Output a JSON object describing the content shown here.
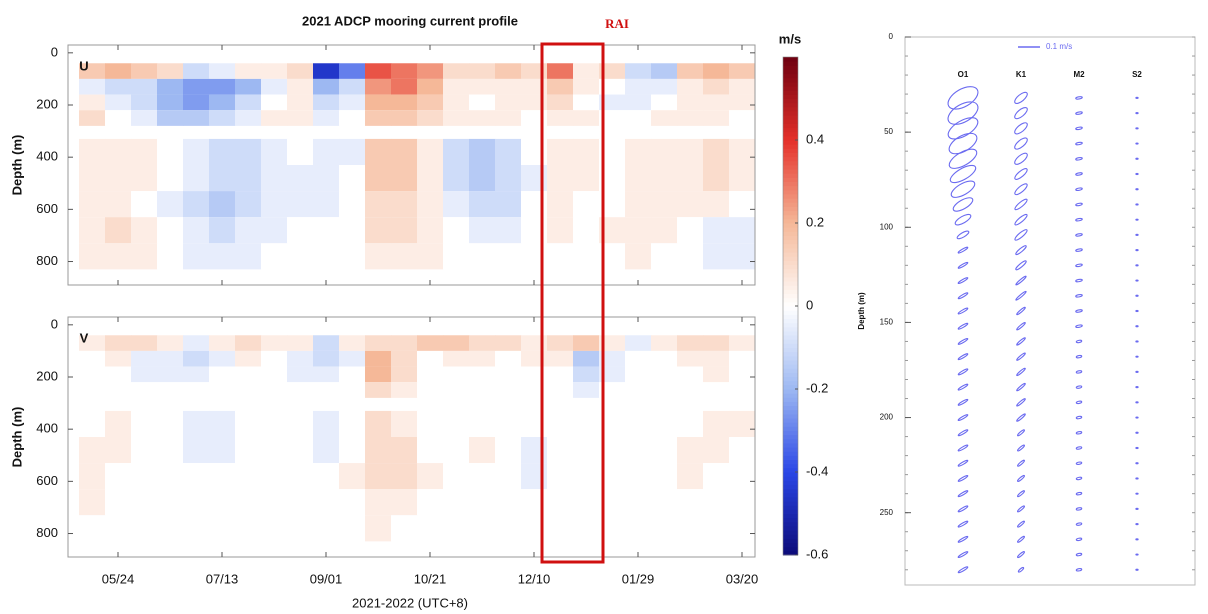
{
  "title": "2021 ADCP mooring current profile",
  "annotation": "RAI",
  "xlabel": "2021-2022 (UTC+8)",
  "colorbar": {
    "label": "m/s",
    "zlim": [
      -0.6,
      0.6
    ],
    "zticks": [
      0.4,
      0.2,
      0,
      -0.2,
      -0.4,
      -0.6
    ],
    "colormap": [
      "#0c0a78",
      "#2a46e6",
      "#9db8f2",
      "#ffffff",
      "#f5b898",
      "#e5312a",
      "#6e0010"
    ]
  },
  "chart_data": [
    {
      "type": "heatmap",
      "panel_label": "U",
      "ylabel": "Depth (m)",
      "ylim": [
        -30,
        890
      ],
      "yticks": [
        0,
        200,
        400,
        600,
        800
      ],
      "rows": [
        [
          40,
          100
        ],
        [
          100,
          160
        ],
        [
          160,
          220
        ],
        [
          220,
          280
        ],
        [
          330,
          430
        ],
        [
          430,
          530
        ],
        [
          530,
          630
        ],
        [
          630,
          730
        ],
        [
          730,
          830
        ]
      ],
      "values": [
        [
          0.15,
          0.2,
          0.15,
          0.1,
          -0.1,
          -0.05,
          0.05,
          0.05,
          0.1,
          -0.45,
          -0.3,
          0.35,
          0.3,
          0.25,
          0.1,
          0.1,
          0.15,
          0.1,
          0.3,
          0.05,
          0.1,
          -0.1,
          -0.15,
          0.15,
          0.2,
          0.15
        ],
        [
          -0.05,
          -0.1,
          -0.1,
          -0.2,
          -0.25,
          -0.25,
          -0.2,
          -0.05,
          0.05,
          -0.2,
          -0.1,
          0.25,
          0.3,
          0.2,
          0.05,
          0.05,
          0.05,
          0.05,
          0.15,
          0.05,
          0,
          -0.05,
          -0.05,
          0.05,
          0.1,
          0.05
        ],
        [
          0.05,
          -0.05,
          -0.1,
          -0.2,
          -0.25,
          -0.2,
          -0.1,
          0,
          0.05,
          -0.1,
          -0.05,
          0.2,
          0.2,
          0.15,
          0.05,
          0,
          0.05,
          0.05,
          0.1,
          0,
          -0.05,
          -0.05,
          0,
          0.05,
          0.05,
          0.05
        ],
        [
          0.1,
          0,
          -0.05,
          -0.15,
          -0.15,
          -0.1,
          -0.05,
          0.05,
          0.05,
          -0.05,
          0,
          0.15,
          0.15,
          0.1,
          0.05,
          0.05,
          0.05,
          0,
          0.05,
          0.05,
          0,
          0,
          0.05,
          0.05,
          0.05,
          0
        ],
        [
          0.05,
          0.05,
          0.05,
          0,
          -0.05,
          -0.1,
          -0.1,
          -0.05,
          0,
          -0.05,
          -0.05,
          0.15,
          0.15,
          0.05,
          -0.1,
          -0.15,
          -0.1,
          0,
          0.05,
          0.05,
          0,
          0.05,
          0.05,
          0.05,
          0.1,
          0.05
        ],
        [
          0.05,
          0.05,
          0.05,
          0,
          -0.05,
          -0.1,
          -0.1,
          -0.05,
          -0.05,
          -0.05,
          0,
          0.15,
          0.15,
          0.05,
          -0.1,
          -0.15,
          -0.1,
          -0.05,
          0.05,
          0.05,
          0,
          0.05,
          0.05,
          0.05,
          0.1,
          0.05
        ],
        [
          0.05,
          0.05,
          0,
          -0.05,
          -0.1,
          -0.15,
          -0.1,
          -0.05,
          -0.05,
          -0.05,
          0,
          0.1,
          0.1,
          0.05,
          -0.05,
          -0.1,
          -0.1,
          0,
          0.05,
          0,
          0,
          0.05,
          0.05,
          0.05,
          0.05,
          0
        ],
        [
          0.05,
          0.1,
          0.05,
          0,
          -0.05,
          -0.1,
          -0.05,
          -0.05,
          0,
          0,
          0,
          0.1,
          0.1,
          0.05,
          0,
          -0.05,
          -0.05,
          0,
          0.05,
          0,
          0.05,
          0.05,
          0.05,
          0,
          -0.05,
          -0.05
        ],
        [
          0.05,
          0.05,
          0.05,
          0,
          -0.05,
          -0.05,
          -0.05,
          0,
          0,
          0,
          0,
          0.05,
          0.05,
          0.05,
          0,
          0,
          0,
          0,
          0,
          0,
          0,
          0.05,
          0,
          0,
          -0.05,
          -0.05
        ]
      ]
    },
    {
      "type": "heatmap",
      "panel_label": "V",
      "ylabel": "Depth (m)",
      "ylim": [
        -30,
        890
      ],
      "yticks": [
        0,
        200,
        400,
        600,
        800
      ],
      "categories": [
        null,
        "05/24",
        null,
        null,
        null,
        "07/13",
        null,
        null,
        null,
        "09/01",
        null,
        null,
        null,
        "10/21",
        null,
        null,
        null,
        "12/10",
        null,
        null,
        null,
        "01/29",
        null,
        null,
        null,
        "03/20"
      ],
      "rows": [
        [
          40,
          100
        ],
        [
          100,
          160
        ],
        [
          160,
          220
        ],
        [
          220,
          280
        ],
        [
          330,
          430
        ],
        [
          430,
          530
        ],
        [
          530,
          630
        ],
        [
          630,
          730
        ],
        [
          730,
          830
        ]
      ],
      "values": [
        [
          0.05,
          0.1,
          0.1,
          0.05,
          -0.05,
          0.05,
          0.1,
          0.05,
          0.05,
          -0.1,
          0.05,
          0.1,
          0.1,
          0.15,
          0.15,
          0.1,
          0.1,
          0.05,
          0.1,
          0.15,
          0.05,
          -0.05,
          0.05,
          0.1,
          0.1,
          0.05
        ],
        [
          0,
          0.05,
          -0.05,
          -0.05,
          -0.1,
          -0.05,
          0.05,
          0,
          -0.05,
          -0.1,
          -0.05,
          0.2,
          0.1,
          0,
          0.05,
          0.05,
          0,
          0.05,
          0.05,
          -0.15,
          -0.05,
          0,
          0,
          0.05,
          0.05,
          0
        ],
        [
          0,
          0,
          -0.05,
          -0.05,
          -0.05,
          0,
          0,
          0,
          -0.05,
          -0.05,
          0,
          0.2,
          0.1,
          0,
          0,
          0,
          0,
          0,
          0,
          -0.1,
          -0.05,
          0,
          0,
          0,
          0.05,
          0
        ],
        [
          0,
          0,
          0,
          0,
          0,
          0,
          0,
          0,
          0,
          0,
          0,
          0.1,
          0.05,
          0,
          0,
          0,
          0,
          0,
          0,
          -0.05,
          0,
          0,
          0,
          0,
          0,
          0
        ],
        [
          0,
          0.05,
          0,
          0,
          -0.05,
          -0.05,
          0,
          0,
          0,
          -0.05,
          0,
          0.1,
          0.05,
          0,
          0,
          0,
          0,
          0,
          0,
          0,
          0,
          0,
          0,
          0,
          0.05,
          0.05
        ],
        [
          0.05,
          0.05,
          0,
          0,
          -0.05,
          -0.05,
          0,
          0,
          0,
          -0.05,
          0,
          0.1,
          0.1,
          0,
          0,
          0.05,
          0,
          -0.05,
          0,
          0,
          0,
          0,
          0,
          0.05,
          0.05,
          0
        ],
        [
          0.05,
          0,
          0,
          0,
          0,
          0,
          0,
          0,
          0,
          0,
          0.05,
          0.1,
          0.1,
          0.05,
          0,
          0,
          0,
          -0.05,
          0,
          0,
          0,
          0,
          0,
          0.05,
          0,
          0
        ],
        [
          0.05,
          0,
          0,
          0,
          0,
          0,
          0,
          0,
          0,
          0,
          0,
          0.05,
          0.05,
          0,
          0,
          0,
          0,
          0,
          0,
          0,
          0,
          0,
          0,
          0,
          0,
          0
        ],
        [
          0,
          0,
          0,
          0,
          0,
          0,
          0,
          0,
          0,
          0,
          0,
          0.05,
          0,
          0,
          0,
          0,
          0,
          0,
          0,
          0,
          0,
          0,
          0,
          0,
          0,
          0
        ]
      ]
    },
    {
      "type": "ellipse",
      "ylabel": "Depth (m)",
      "ylim": [
        0,
        288
      ],
      "yticks": [
        0,
        50,
        100,
        150,
        200,
        250
      ],
      "color": "#6b6bf0",
      "legend": {
        "value": 0.1,
        "label": "0.1 m/s"
      },
      "depths": [
        32,
        40,
        48,
        56,
        64,
        72,
        80,
        88,
        96,
        104,
        112,
        120,
        128,
        136,
        144,
        152,
        160,
        168,
        176,
        184,
        192,
        200,
        208,
        216,
        224,
        232,
        240,
        248,
        256,
        264,
        272,
        280
      ],
      "series": [
        {
          "name": "O1",
          "inclination": 30,
          "major": [
            0.15,
            0.15,
            0.15,
            0.14,
            0.14,
            0.13,
            0.12,
            0.1,
            0.08,
            0.06,
            0.05,
            0.05,
            0.05,
            0.05,
            0.05,
            0.05,
            0.05,
            0.05,
            0.05,
            0.05,
            0.05,
            0.05,
            0.05,
            0.05,
            0.05,
            0.05,
            0.05,
            0.05,
            0.05,
            0.05,
            0.05,
            0.05
          ],
          "minor": [
            0.08,
            0.08,
            0.07,
            0.07,
            0.06,
            0.05,
            0.05,
            0.04,
            0.03,
            0.02,
            0.01,
            0.01,
            0.01,
            0.01,
            0.01,
            0.01,
            0.01,
            0.01,
            0.01,
            0.01,
            0.01,
            0.01,
            0.01,
            0.01,
            0.01,
            0.01,
            0.01,
            0.01,
            0.01,
            0.01,
            0.01,
            0.01
          ]
        },
        {
          "name": "K1",
          "inclination": 40,
          "major": [
            0.07,
            0.07,
            0.07,
            0.07,
            0.07,
            0.07,
            0.07,
            0.07,
            0.07,
            0.07,
            0.06,
            0.06,
            0.06,
            0.06,
            0.05,
            0.05,
            0.05,
            0.05,
            0.05,
            0.05,
            0.05,
            0.05,
            0.04,
            0.04,
            0.04,
            0.04,
            0.04,
            0.04,
            0.04,
            0.04,
            0.04,
            0.03
          ],
          "minor": [
            0.03,
            0.03,
            0.03,
            0.03,
            0.03,
            0.025,
            0.025,
            0.02,
            0.02,
            0.02,
            0.015,
            0.015,
            0.01,
            0.01,
            0.01,
            0.01,
            0.01,
            0.01,
            0.01,
            0.01,
            0.01,
            0.01,
            0.01,
            0.01,
            0.01,
            0.01,
            0.01,
            0.01,
            0.01,
            0.01,
            0.01,
            0.01
          ]
        },
        {
          "name": "M2",
          "inclination": 10,
          "major": [
            0.03,
            0.03,
            0.03,
            0.03,
            0.03,
            0.03,
            0.03,
            0.03,
            0.03,
            0.03,
            0.03,
            0.03,
            0.03,
            0.03,
            0.03,
            0.03,
            0.025,
            0.025,
            0.025,
            0.025,
            0.025,
            0.025,
            0.025,
            0.025,
            0.025,
            0.025,
            0.025,
            0.025,
            0.025,
            0.025,
            0.025,
            0.025
          ],
          "minor": [
            0.01,
            0.01,
            0.01,
            0.01,
            0.01,
            0.01,
            0.01,
            0.01,
            0.01,
            0.01,
            0.01,
            0.01,
            0.01,
            0.01,
            0.01,
            0.01,
            0.01,
            0.01,
            0.01,
            0.01,
            0.01,
            0.01,
            0.01,
            0.01,
            0.01,
            0.01,
            0.01,
            0.01,
            0.01,
            0.01,
            0.01,
            0.01
          ]
        },
        {
          "name": "S2",
          "inclination": 0,
          "major": [
            0.01,
            0.01,
            0.01,
            0.01,
            0.01,
            0.01,
            0.01,
            0.01,
            0.01,
            0.01,
            0.01,
            0.01,
            0.01,
            0.01,
            0.01,
            0.01,
            0.01,
            0.01,
            0.01,
            0.01,
            0.01,
            0.01,
            0.01,
            0.01,
            0.01,
            0.01,
            0.01,
            0.01,
            0.01,
            0.01,
            0.01,
            0.01
          ],
          "minor": [
            0.005,
            0.005,
            0.005,
            0.005,
            0.005,
            0.005,
            0.005,
            0.005,
            0.005,
            0.005,
            0.005,
            0.005,
            0.005,
            0.005,
            0.005,
            0.005,
            0.005,
            0.005,
            0.005,
            0.005,
            0.005,
            0.005,
            0.005,
            0.005,
            0.005,
            0.005,
            0.005,
            0.005,
            0.005,
            0.005,
            0.005,
            0.005
          ]
        }
      ]
    }
  ]
}
